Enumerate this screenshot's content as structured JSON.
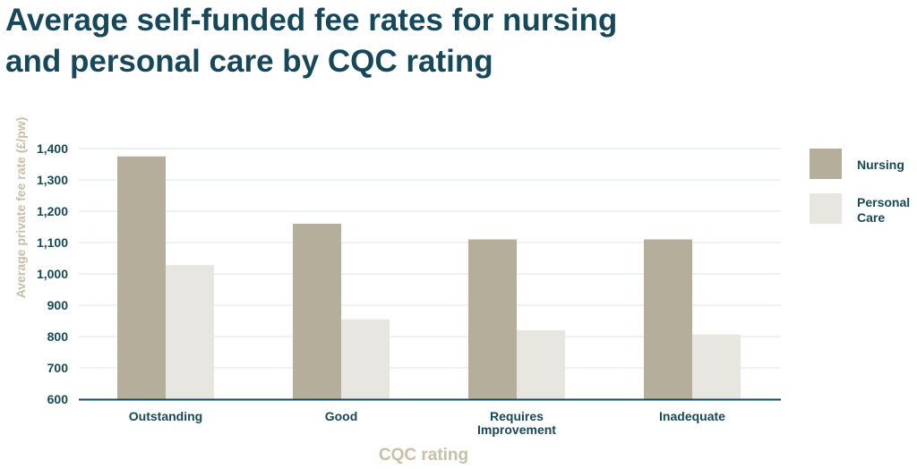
{
  "chart_data": {
    "type": "bar",
    "title_lines": [
      "Average self-funded fee rates for nursing",
      "and personal care by CQC rating"
    ],
    "xlabel": "CQC rating",
    "ylabel": "Average private fee rate (£/pw)",
    "categories": [
      [
        "Outstanding"
      ],
      [
        "Good"
      ],
      [
        "Requires",
        "Improvement"
      ],
      [
        "Inadequate"
      ]
    ],
    "ylim": [
      600,
      1400
    ],
    "yticks": [
      600,
      700,
      800,
      900,
      1000,
      1100,
      1200,
      1300,
      1400
    ],
    "ytick_labels": [
      "600",
      "700",
      "800",
      "900",
      "1,000",
      "1,100",
      "1,200",
      "1,300",
      "1,400"
    ],
    "grid": true,
    "legend_position": "right",
    "series": [
      {
        "name": "Nursing",
        "legend_lines": [
          "Nursing"
        ],
        "color": "#b5ae9a",
        "values": [
          1375,
          1160,
          1110,
          1110
        ]
      },
      {
        "name": "Personal Care",
        "legend_lines": [
          "Personal",
          "Care"
        ],
        "color": "#e7e6e1",
        "values": [
          1028,
          855,
          820,
          806
        ]
      }
    ]
  }
}
